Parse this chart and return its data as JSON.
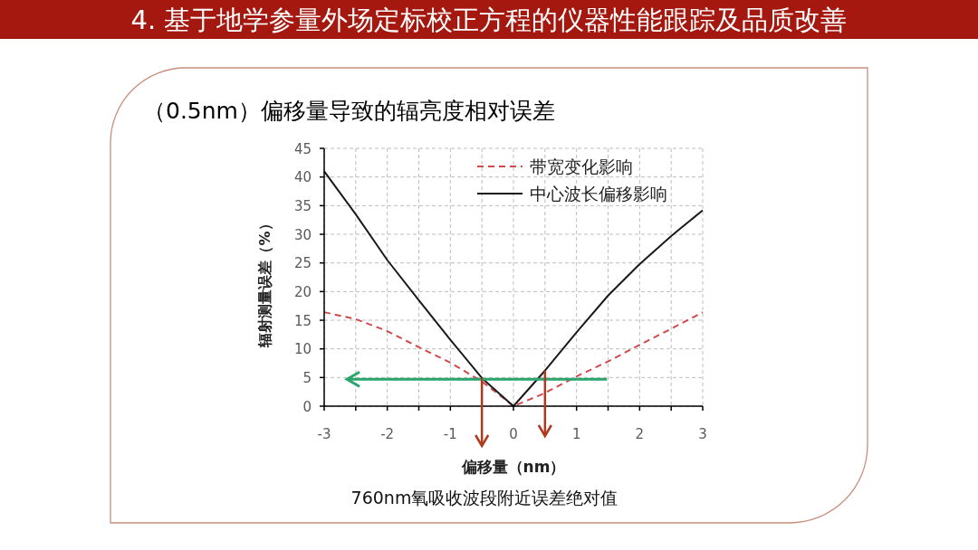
{
  "chart_data": {
    "type": "line",
    "title": "4. 基于地学参量外场定标校正方程的仪器性能跟踪及品质改善",
    "subtitle": "（0.5nm）偏移量导致的辐亮度相对误差",
    "xlabel": "偏移量（nm）",
    "ylabel": "辐射测量误差（%）",
    "annotations": [
      "760nm氧吸收波段附近误差绝对值"
    ],
    "series": [
      {
        "name": "带宽变化影响",
        "color": "#d0494b",
        "line_style": "dashed",
        "x": [
          -3,
          -2.5,
          -2,
          -1.5,
          -1,
          -0.5,
          -0.25,
          0,
          0.5,
          1,
          1.5,
          2,
          2.5,
          3
        ],
        "values": [
          16.4,
          15.2,
          13.1,
          10.3,
          7.6,
          4.3,
          2.2,
          0,
          2.3,
          5.2,
          7.8,
          10.7,
          13.5,
          16.4
        ]
      },
      {
        "name": "中心波长偏移影响",
        "color": "#1a1a1a",
        "line_style": "solid",
        "x": [
          -3,
          -2.5,
          -2,
          -1.5,
          -1,
          -0.5,
          0,
          0.5,
          1,
          1.5,
          2,
          2.5,
          3
        ],
        "values": [
          41,
          33.5,
          25.5,
          18.5,
          11.6,
          4.9,
          0,
          6.2,
          12.9,
          19.3,
          24.8,
          29.7,
          34.2
        ]
      }
    ],
    "xlim": [
      -3,
      3
    ],
    "xticks": [
      -3,
      {
        "value": -2.5,
        "label": null
      },
      -2,
      {
        "value": -1.5,
        "label": null
      },
      -1,
      {
        "value": -0.5,
        "label": null
      },
      0,
      {
        "value": 0.5,
        "label": null
      },
      1,
      {
        "value": 1.5,
        "label": null
      },
      2,
      {
        "value": 2.5,
        "label": null
      },
      3
    ],
    "ylim": [
      0,
      45
    ],
    "yticks": [
      0,
      5,
      10,
      15,
      20,
      25,
      30,
      35,
      40,
      45
    ],
    "grid": true,
    "legend": "top right",
    "ref_lines": [
      {
        "axis": "y",
        "value": 4.7,
        "color": "#2aa56e"
      },
      {
        "axis": "x",
        "value": -0.5,
        "color": "#b0381c"
      },
      {
        "axis": "x",
        "value": 0.5,
        "color": "#b0381c"
      }
    ]
  }
}
